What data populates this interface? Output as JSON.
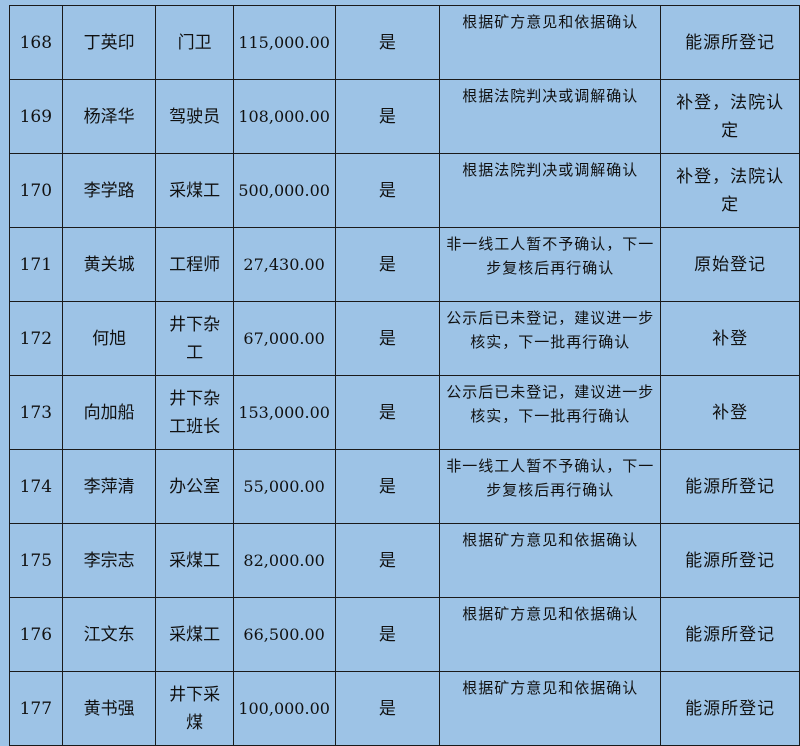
{
  "rows": [
    {
      "no": "168",
      "name": "丁英印",
      "job": "门卫",
      "amount": "115,000.00",
      "flag": "是",
      "note": "根据矿方意见和依据确认",
      "remark": "能源所登记"
    },
    {
      "no": "169",
      "name": "杨泽华",
      "job": "驾驶员",
      "amount": "108,000.00",
      "flag": "是",
      "note": "根据法院判决或调解确认",
      "remark": "补登，法院认定"
    },
    {
      "no": "170",
      "name": "李学路",
      "job": "采煤工",
      "amount": "500,000.00",
      "flag": "是",
      "note": "根据法院判决或调解确认",
      "remark": "补登，法院认定"
    },
    {
      "no": "171",
      "name": "黄关城",
      "job": "工程师",
      "amount": "27,430.00",
      "flag": "是",
      "note": "非一线工人暂不予确认，下一步复核后再行确认",
      "remark": "原始登记"
    },
    {
      "no": "172",
      "name": "何旭",
      "job": "井下杂工",
      "amount": "67,000.00",
      "flag": "是",
      "note": "公示后已未登记，建议进一步核实，下一批再行确认",
      "remark": "补登"
    },
    {
      "no": "173",
      "name": "向加船",
      "job": "井下杂工班长",
      "amount": "153,000.00",
      "flag": "是",
      "note": "公示后已未登记，建议进一步核实，下一批再行确认",
      "remark": "补登"
    },
    {
      "no": "174",
      "name": "李萍清",
      "job": "办公室",
      "amount": "55,000.00",
      "flag": "是",
      "note": "非一线工人暂不予确认，下一步复核后再行确认",
      "remark": "能源所登记"
    },
    {
      "no": "175",
      "name": "李宗志",
      "job": "采煤工",
      "amount": "82,000.00",
      "flag": "是",
      "note": "根据矿方意见和依据确认",
      "remark": "能源所登记"
    },
    {
      "no": "176",
      "name": "江文东",
      "job": "采煤工",
      "amount": "66,500.00",
      "flag": "是",
      "note": "根据矿方意见和依据确认",
      "remark": "能源所登记"
    },
    {
      "no": "177",
      "name": "黄书强",
      "job": "井下采煤",
      "amount": "100,000.00",
      "flag": "是",
      "note": "根据矿方意见和依据确认",
      "remark": "能源所登记"
    }
  ]
}
